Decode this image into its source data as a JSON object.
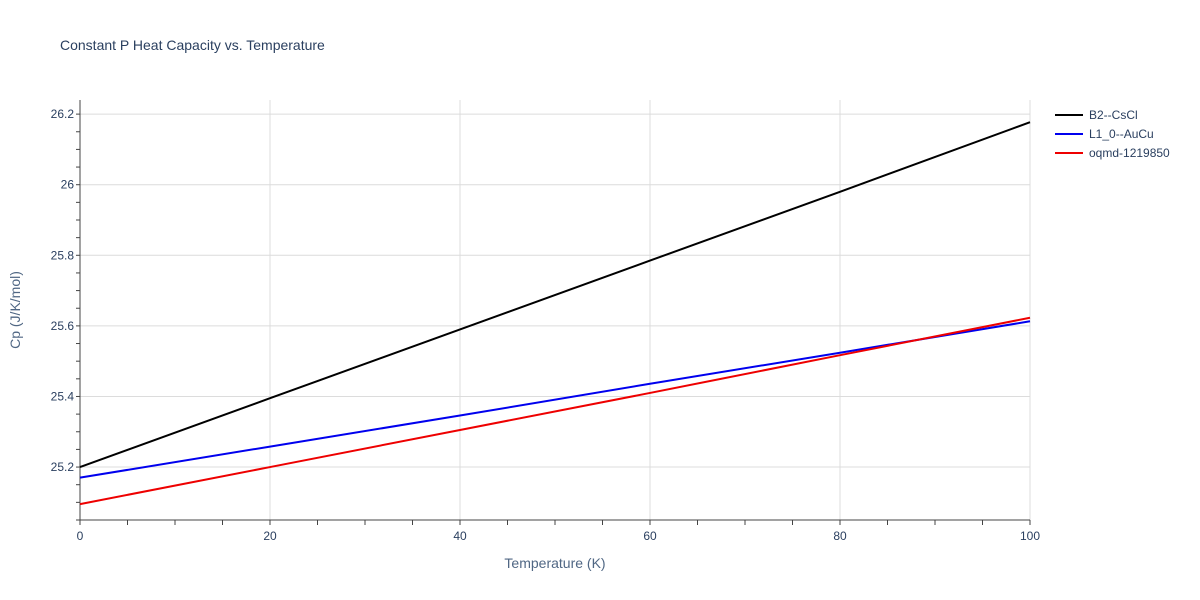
{
  "chart_data": {
    "type": "line",
    "title": "Constant P Heat Capacity vs. Temperature",
    "xlabel": "Temperature (K)",
    "ylabel": "Cp (J/K/mol)",
    "xlim": [
      0,
      100
    ],
    "ylim": [
      25.05,
      26.24
    ],
    "x_ticks": [
      0,
      20,
      40,
      60,
      80,
      100
    ],
    "x_tick_labels": [
      "0",
      "20",
      "40",
      "60",
      "80",
      "100"
    ],
    "y_ticks": [
      25.2,
      25.4,
      25.6,
      25.8,
      26.0,
      26.2
    ],
    "y_tick_labels": [
      "25.2",
      "25.4",
      "25.6",
      "25.8",
      "26",
      "26.2"
    ],
    "grid": true,
    "legend_position": "top-right",
    "series": [
      {
        "name": "B2--CsCl",
        "color": "#000000",
        "x": [
          0,
          20,
          40,
          60,
          80,
          100
        ],
        "y": [
          25.2,
          25.395,
          25.59,
          25.785,
          25.98,
          26.177
        ]
      },
      {
        "name": "L1_0--AuCu",
        "color": "#0000ee",
        "x": [
          0,
          20,
          40,
          60,
          80,
          100
        ],
        "y": [
          25.17,
          25.258,
          25.346,
          25.436,
          25.524,
          25.613
        ]
      },
      {
        "name": "oqmd-1219850",
        "color": "#ee0000",
        "x": [
          0,
          20,
          40,
          60,
          80,
          100
        ],
        "y": [
          25.095,
          25.2,
          25.305,
          25.41,
          25.517,
          25.623
        ]
      }
    ]
  }
}
